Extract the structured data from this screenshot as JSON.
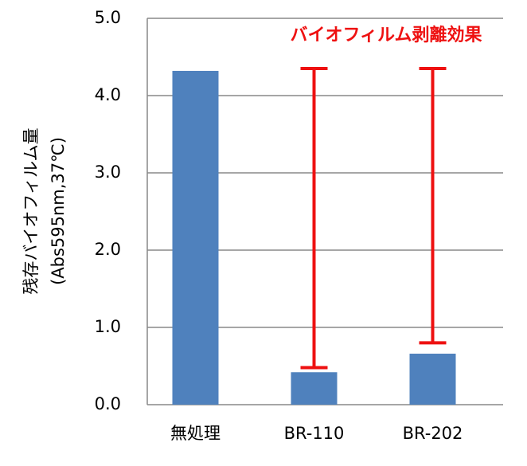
{
  "chart_data": {
    "type": "bar",
    "annotation": "バイオフィルム剥離効果",
    "y_label": [
      "残存バイオフィルム量",
      "(Abs595nm,37℃)"
    ],
    "categories": [
      "無処理",
      "BR-110",
      "BR-202"
    ],
    "values": [
      4.32,
      0.42,
      0.66
    ],
    "color": "#4f81bd",
    "brackets": [
      null,
      [
        0.48,
        4.35
      ],
      [
        0.8,
        4.35
      ]
    ],
    "bracket_color": "#ee1111",
    "ylim": [
      0,
      5
    ],
    "yticks": [
      {
        "value": 0,
        "label": "0.0"
      },
      {
        "value": 1,
        "label": "1.0"
      },
      {
        "value": 2,
        "label": "2.0"
      },
      {
        "value": 3,
        "label": "3.0"
      },
      {
        "value": 4,
        "label": "4.0"
      },
      {
        "value": 5,
        "label": "5.0"
      }
    ],
    "grid": true
  }
}
